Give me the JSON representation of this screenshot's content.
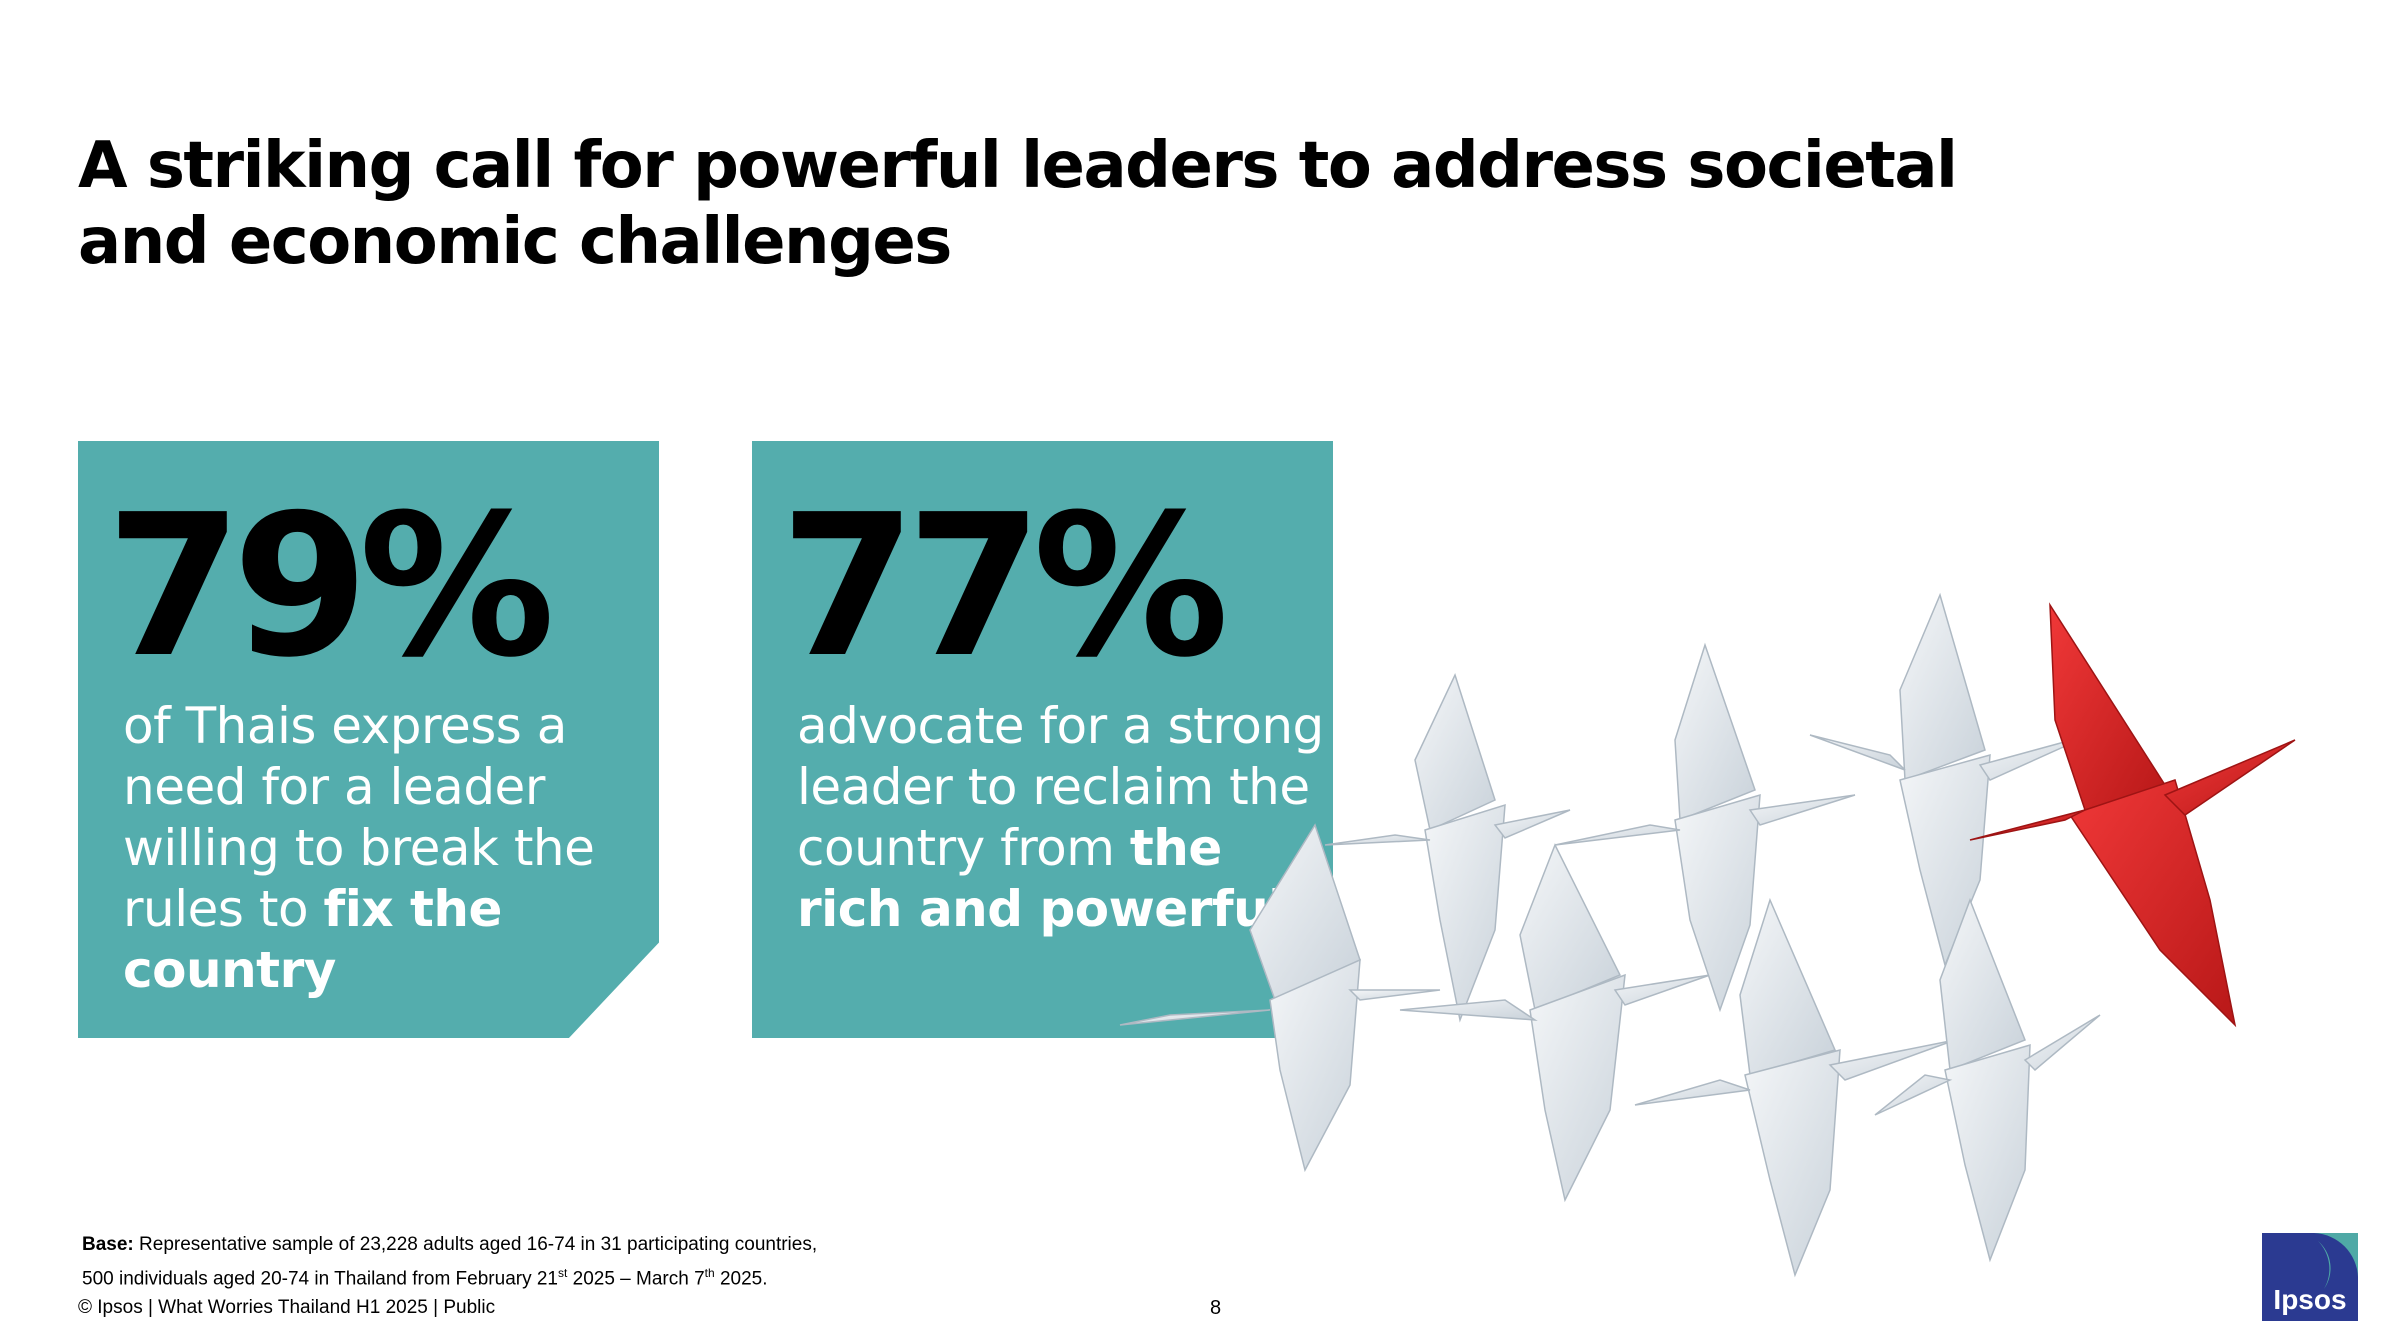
{
  "slide": {
    "title": "A striking call for powerful leaders to address societal and economic challenges",
    "page_number": "8",
    "colors": {
      "accent": "#54ADAD",
      "crane_red": "#E02A2A",
      "crane_white": "#E9EEF2",
      "logo_blue": "#2B3A91",
      "logo_teal": "#4FA9A6"
    }
  },
  "stats": [
    {
      "value": "79%",
      "text_before": "of Thais express a need for a leader willing to break the rules to ",
      "text_bold": "fix the country"
    },
    {
      "value": "77%",
      "text_before": "advocate for a strong leader to reclaim the country from ",
      "text_bold": "the rich and powerful"
    }
  ],
  "base_note": {
    "label": "Base:",
    "line1": " Representative sample of 23,228 adults aged 16-74 in 31 participating countries,",
    "line2_a": "500 individuals aged 20-74 in Thailand from February 21",
    "sup1": "st",
    "line2_b": " 2025 – March 7",
    "sup2": "th",
    "line2_c": " 2025."
  },
  "footer": {
    "text": "© Ipsos | What Worries Thailand H1 2025 | Public"
  },
  "logo": {
    "text": "Ipsos"
  },
  "image": {
    "description_icon": "origami-cranes-image"
  }
}
